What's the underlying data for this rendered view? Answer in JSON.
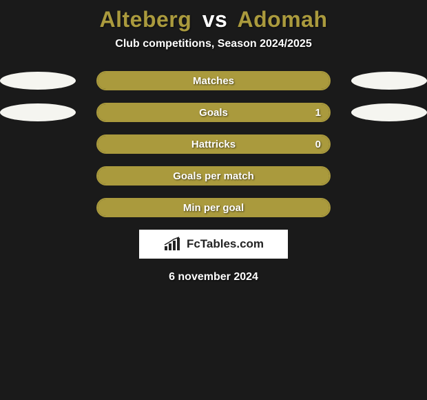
{
  "title": {
    "player1": "Alteberg",
    "vs": "vs",
    "player2": "Adomah",
    "player1_color": "#aa9a3d",
    "player2_color": "#aa9a3d"
  },
  "subtitle": "Club competitions, Season 2024/2025",
  "background_color": "#1a1a1a",
  "bar_border_color": "#aa9a3d",
  "bar_fill_color": "#aa9a3d",
  "ellipse_color": "#f5f5f0",
  "stats": [
    {
      "label": "Matches",
      "value": "",
      "fill_pct": 100,
      "left_ellipse": true,
      "right_ellipse": true
    },
    {
      "label": "Goals",
      "value": "1",
      "fill_pct": 100,
      "left_ellipse": true,
      "right_ellipse": true
    },
    {
      "label": "Hattricks",
      "value": "0",
      "fill_pct": 100,
      "left_ellipse": false,
      "right_ellipse": false
    },
    {
      "label": "Goals per match",
      "value": "",
      "fill_pct": 100,
      "left_ellipse": false,
      "right_ellipse": false
    },
    {
      "label": "Min per goal",
      "value": "",
      "fill_pct": 100,
      "left_ellipse": false,
      "right_ellipse": false
    }
  ],
  "logo": {
    "brand": "FcTables.com"
  },
  "date": "6 november 2024"
}
